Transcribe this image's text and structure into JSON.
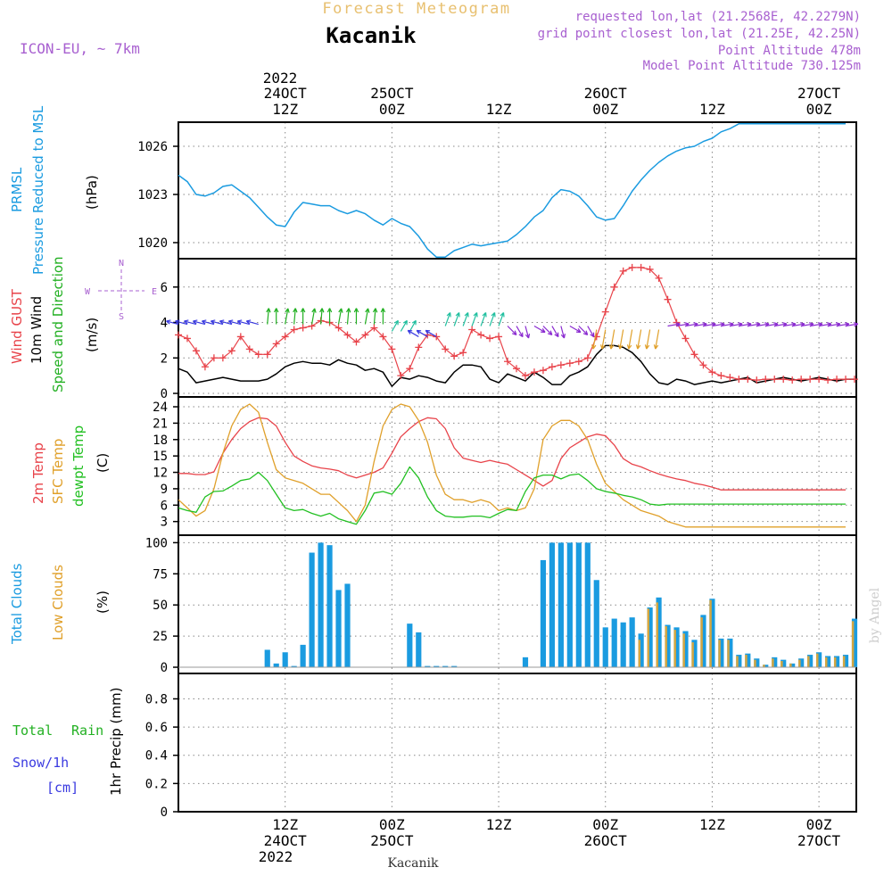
{
  "header": {
    "title_top": "Forecast Meteogram",
    "station": "Kacanik",
    "model": "ICON-EU, ~ 7km",
    "requested": "requested lon,lat (21.2568E, 42.2279N)",
    "gridpoint": "grid point closest lon,lat (21.25E, 42.25N)",
    "altitude": "Point Altitude 478m",
    "model_altitude": "Model Point Altitude 730.125m",
    "footer_station": "Kacanik",
    "credit": "by Angel",
    "year_top": "2022",
    "year_bottom": "2022"
  },
  "colors": {
    "pressure": "#1a9be0",
    "gust": "#e8434a",
    "wind": "#000000",
    "dir": "#22b022",
    "temp2m": "#e8434a",
    "sfc": "#e0a02a",
    "dew": "#22c022",
    "total": "#1a9be0",
    "low": "#d4a640",
    "precip_rain": "#22b022",
    "precip_snow": "#3a3ae0",
    "purple": "#a860d0",
    "title_orange": "#e8c070"
  },
  "time_axis": {
    "top_labels": [
      {
        "h": 12,
        "l1": "24OCT",
        "l2": "12Z"
      },
      {
        "h": 24,
        "l1": "25OCT",
        "l2": "00Z"
      },
      {
        "h": 36,
        "l1": "",
        "l2": "12Z"
      },
      {
        "h": 48,
        "l1": "26OCT",
        "l2": "00Z"
      },
      {
        "h": 60,
        "l1": "",
        "l2": "12Z"
      },
      {
        "h": 72,
        "l1": "27OCT",
        "l2": "00Z"
      }
    ],
    "bottom_labels": [
      {
        "h": 12,
        "l1": "12Z",
        "l2": "24OCT"
      },
      {
        "h": 24,
        "l1": "00Z",
        "l2": "25OCT"
      },
      {
        "h": 36,
        "l1": "12Z",
        "l2": ""
      },
      {
        "h": 48,
        "l1": "00Z",
        "l2": "26OCT"
      },
      {
        "h": 60,
        "l1": "12Z",
        "l2": ""
      },
      {
        "h": 72,
        "l1": "00Z",
        "l2": "27OCT"
      }
    ]
  },
  "panel_labels": {
    "pressure": {
      "name1": "PRMSL",
      "name2": "Pressure Reduced to MSL",
      "unit": "(hPa)"
    },
    "wind": {
      "gust": "Wind GUST",
      "wind10": "10m Wind",
      "dir": "Speed and Direction",
      "unit": "(m/s)",
      "compass": {
        "n": "N",
        "w": "W",
        "e": "E",
        "s": "S"
      }
    },
    "temp": {
      "t2m": "2m Temp",
      "sfc": "SFC Temp",
      "dew": "dewpt Temp",
      "unit": "(C)"
    },
    "cloud": {
      "total": "Total Clouds",
      "low": "Low Clouds",
      "unit": "(%)"
    },
    "precip": {
      "rain_a": "Total",
      "rain_b": "Rain",
      "snow": "Snow/1h",
      "snow_unit": "[cm]",
      "unit": "1hr Precip (mm)"
    }
  },
  "chart_data": [
    {
      "type": "line",
      "name": "PRMSL",
      "ylabel": "(hPa)",
      "yticks": [
        1020,
        1023,
        1026
      ],
      "ylim": [
        1019,
        1027.5
      ],
      "x_hours": [
        0,
        1,
        2,
        3,
        4,
        5,
        6,
        7,
        8,
        9,
        10,
        11,
        12,
        13,
        14,
        15,
        16,
        17,
        18,
        19,
        20,
        21,
        22,
        23,
        24,
        25,
        26,
        27,
        28,
        29,
        30,
        31,
        32,
        33,
        34,
        35,
        36,
        37,
        38,
        39,
        40,
        41,
        42,
        43,
        44,
        45,
        46,
        47,
        48,
        49,
        50,
        51,
        52,
        53,
        54,
        55,
        56,
        57,
        58,
        59,
        60,
        61,
        62,
        63,
        64,
        65,
        66,
        67,
        68,
        69,
        70,
        71,
        72,
        73,
        74,
        75,
        76
      ],
      "values": [
        1024.2,
        1023.8,
        1023.0,
        1022.9,
        1023.1,
        1023.5,
        1023.6,
        1023.2,
        1022.8,
        1022.2,
        1021.6,
        1021.1,
        1021.0,
        1021.9,
        1022.5,
        1022.4,
        1022.3,
        1022.3,
        1022.0,
        1021.8,
        1022.0,
        1021.8,
        1021.4,
        1021.1,
        1021.5,
        1021.2,
        1021.0,
        1020.4,
        1019.6,
        1019.1,
        1019.1,
        1019.5,
        1019.7,
        1019.9,
        1019.8,
        1019.9,
        1020.0,
        1020.1,
        1020.5,
        1021.0,
        1021.6,
        1022.0,
        1022.8,
        1023.3,
        1023.2,
        1022.9,
        1022.3,
        1021.6,
        1021.4,
        1021.5,
        1022.3,
        1023.2,
        1023.9,
        1024.5,
        1025.0,
        1025.4,
        1025.7,
        1025.9,
        1026.0,
        1026.3,
        1026.5,
        1026.9,
        1027.1,
        1027.4,
        1027.4,
        1027.4,
        1027.4,
        1027.4,
        1027.4,
        1027.4,
        1027.4,
        1027.4,
        1027.4,
        1027.4,
        1027.4,
        1027.4,
        1027.4
      ]
    },
    {
      "type": "line",
      "name": "Wind",
      "ylabel": "(m/s)",
      "yticks": [
        0,
        2,
        4,
        6
      ],
      "ylim": [
        -0.2,
        7.6
      ],
      "gust_x": [
        0,
        1,
        2,
        3,
        4,
        5,
        6,
        7,
        8,
        9,
        10,
        11,
        12,
        13,
        14,
        15,
        16,
        17,
        18,
        19,
        20,
        21,
        22,
        23,
        24,
        25,
        26,
        27,
        28,
        29,
        30,
        31,
        32,
        33,
        34,
        35,
        36,
        37,
        38,
        39,
        40,
        41,
        42,
        43,
        44,
        45,
        46,
        47,
        48,
        49,
        50,
        51,
        52,
        53,
        54,
        55,
        56,
        57,
        58,
        59,
        60,
        61,
        62,
        63,
        64,
        65,
        66,
        67,
        68,
        69,
        70,
        71,
        72,
        73,
        74,
        75,
        76
      ],
      "gust": [
        3.3,
        3.1,
        2.4,
        1.5,
        2.0,
        2.0,
        2.4,
        3.2,
        2.5,
        2.2,
        2.2,
        2.8,
        3.2,
        3.6,
        3.7,
        3.8,
        4.1,
        4.0,
        3.7,
        3.3,
        2.9,
        3.3,
        3.7,
        3.2,
        2.5,
        1.0,
        1.4,
        2.6,
        3.3,
        3.2,
        2.5,
        2.1,
        2.3,
        3.6,
        3.3,
        3.1,
        3.2,
        1.8,
        1.4,
        1.0,
        1.2,
        1.3,
        1.5,
        1.6,
        1.7,
        1.8,
        2.0,
        3.2,
        4.6,
        6.0,
        6.9,
        7.1,
        7.1,
        7.0,
        6.5,
        5.3,
        4.0,
        3.1,
        2.2,
        1.6,
        1.2,
        1.0,
        0.9,
        0.8,
        0.8,
        0.75,
        0.8,
        0.8,
        0.8,
        0.75,
        0.8,
        0.8,
        0.8,
        0.75,
        0.8,
        0.8,
        0.8
      ],
      "wind_x": [
        0,
        1,
        2,
        3,
        4,
        5,
        6,
        7,
        8,
        9,
        10,
        11,
        12,
        13,
        14,
        15,
        16,
        17,
        18,
        19,
        20,
        21,
        22,
        23,
        24,
        25,
        26,
        27,
        28,
        29,
        30,
        31,
        32,
        33,
        34,
        35,
        36,
        37,
        38,
        39,
        40,
        41,
        42,
        43,
        44,
        45,
        46,
        47,
        48,
        49,
        50,
        51,
        52,
        53,
        54,
        55,
        56,
        57,
        58,
        59,
        60,
        61,
        62,
        63,
        64,
        65,
        66,
        67,
        68,
        69,
        70,
        71,
        72,
        73,
        74,
        75,
        76
      ],
      "wind": [
        1.4,
        1.2,
        0.6,
        0.7,
        0.8,
        0.9,
        0.8,
        0.7,
        0.7,
        0.7,
        0.8,
        1.1,
        1.5,
        1.7,
        1.8,
        1.7,
        1.7,
        1.6,
        1.9,
        1.7,
        1.6,
        1.3,
        1.4,
        1.2,
        0.4,
        0.9,
        0.8,
        1.0,
        0.9,
        0.7,
        0.6,
        1.2,
        1.6,
        1.6,
        1.5,
        0.8,
        0.6,
        1.1,
        0.9,
        0.7,
        1.2,
        0.9,
        0.5,
        0.5,
        1.0,
        1.2,
        1.5,
        2.2,
        2.7,
        2.7,
        2.6,
        2.3,
        1.8,
        1.1,
        0.6,
        0.5,
        0.8,
        0.7,
        0.5,
        0.6,
        0.7,
        0.6,
        0.7,
        0.8,
        0.9,
        0.6,
        0.7,
        0.8,
        0.9,
        0.8,
        0.7,
        0.8,
        0.9,
        0.8,
        0.7,
        0.8,
        0.8
      ]
    },
    {
      "type": "line",
      "name": "Temperature",
      "ylabel": "(C)",
      "yticks": [
        3,
        6,
        9,
        12,
        15,
        18,
        21,
        24
      ],
      "ylim": [
        0.5,
        25.8
      ],
      "x": [
        0,
        1,
        2,
        3,
        4,
        5,
        6,
        7,
        8,
        9,
        10,
        11,
        12,
        13,
        14,
        15,
        16,
        17,
        18,
        19,
        20,
        21,
        22,
        23,
        24,
        25,
        26,
        27,
        28,
        29,
        30,
        31,
        32,
        33,
        34,
        35,
        36,
        37,
        38,
        39,
        40,
        41,
        42,
        43,
        44,
        45,
        46,
        47,
        48,
        49,
        50,
        51,
        52,
        53,
        54,
        55,
        56,
        57,
        58,
        59,
        60,
        61,
        62,
        63,
        64,
        65,
        66,
        67,
        68,
        69,
        70,
        71,
        72,
        73,
        74,
        75,
        76
      ],
      "t2m": [
        11.8,
        11.8,
        11.6,
        11.6,
        12.1,
        15.5,
        18.0,
        20.0,
        21.3,
        22.0,
        21.8,
        20.5,
        17.5,
        15.0,
        14.0,
        13.2,
        12.8,
        12.6,
        12.3,
        11.5,
        11.0,
        11.5,
        12.0,
        12.8,
        15.5,
        18.5,
        20.0,
        21.3,
        22.0,
        21.8,
        20.0,
        16.5,
        14.6,
        14.2,
        13.8,
        14.2,
        13.8,
        13.5,
        12.5,
        11.5,
        10.5,
        9.5,
        10.5,
        14.5,
        16.5,
        17.5,
        18.5,
        19.0,
        18.7,
        17.0,
        14.5,
        13.5,
        13.0,
        12.3,
        11.7,
        11.2,
        10.8,
        10.5,
        10.0,
        9.7,
        9.3,
        8.8,
        8.8,
        8.8,
        8.8,
        8.8,
        8.8,
        8.8,
        8.8,
        8.8,
        8.8,
        8.8,
        8.8,
        8.8,
        8.8,
        8.8,
        8.8
      ],
      "sfc": [
        7.0,
        5.5,
        4.0,
        5.0,
        9.0,
        15.5,
        20.5,
        23.5,
        24.5,
        23.0,
        17.5,
        12.5,
        11.0,
        10.5,
        10.0,
        9.0,
        8.0,
        8.0,
        6.5,
        5.0,
        3.0,
        6.0,
        14.0,
        20.5,
        23.5,
        24.5,
        24.0,
        21.5,
        17.5,
        11.5,
        8.0,
        7.0,
        7.0,
        6.5,
        7.0,
        6.5,
        5.0,
        5.5,
        5.0,
        5.5,
        9.0,
        18.0,
        20.5,
        21.5,
        21.5,
        20.5,
        18.0,
        13.5,
        10.0,
        8.5,
        7.0,
        6.0,
        5.0,
        4.5,
        4.0,
        3.0,
        2.5,
        2.0,
        2.0,
        2.0,
        2.0,
        2.0,
        2.0,
        2.0,
        2.0,
        2.0,
        2.0,
        2.0,
        2.0,
        2.0,
        2.0,
        2.0,
        2.0,
        2.0,
        2.0,
        2.0,
        2.0
      ],
      "dew": [
        5.5,
        5.0,
        4.7,
        7.5,
        8.5,
        8.6,
        9.5,
        10.5,
        10.8,
        12.0,
        10.5,
        8.0,
        5.5,
        5.0,
        5.2,
        4.5,
        4.0,
        4.5,
        3.5,
        3.0,
        2.5,
        5.0,
        8.2,
        8.5,
        8.0,
        10.0,
        13.0,
        11.0,
        7.5,
        5.0,
        4.0,
        3.8,
        3.8,
        4.0,
        4.0,
        3.7,
        4.5,
        5.2,
        5.0,
        8.5,
        11.0,
        11.5,
        11.5,
        10.8,
        11.5,
        11.7,
        10.5,
        9.0,
        8.5,
        8.2,
        7.8,
        7.5,
        7.0,
        6.2,
        6.0,
        6.2,
        6.2,
        6.2,
        6.2,
        6.2,
        6.2,
        6.2,
        6.2,
        6.2,
        6.2,
        6.2,
        6.2,
        6.2,
        6.2,
        6.2,
        6.2,
        6.2,
        6.2,
        6.2,
        6.2,
        6.2,
        6.2
      ]
    },
    {
      "type": "bar",
      "name": "Clouds",
      "ylabel": "(%)",
      "yticks": [
        0,
        25,
        50,
        75,
        100
      ],
      "ylim": [
        -5,
        106
      ],
      "x": [
        0,
        1,
        2,
        3,
        4,
        5,
        6,
        7,
        8,
        9,
        10,
        11,
        12,
        13,
        14,
        15,
        16,
        17,
        18,
        19,
        20,
        21,
        22,
        23,
        24,
        25,
        26,
        27,
        28,
        29,
        30,
        31,
        32,
        33,
        34,
        35,
        36,
        37,
        38,
        39,
        40,
        41,
        42,
        43,
        44,
        45,
        46,
        47,
        48,
        49,
        50,
        51,
        52,
        53,
        54,
        55,
        56,
        57,
        58,
        59,
        60,
        61,
        62,
        63,
        64,
        65,
        66,
        67,
        68,
        69,
        70,
        71,
        72,
        73,
        74,
        75,
        76
      ],
      "total": [
        0,
        0,
        0,
        0,
        0,
        0,
        0,
        0,
        0,
        0,
        14,
        3,
        12,
        1,
        18,
        92,
        100,
        98,
        62,
        67,
        0,
        0,
        0,
        0,
        0,
        0,
        35,
        28,
        1,
        1,
        1,
        1,
        0,
        0,
        0,
        0,
        0,
        0,
        0,
        8,
        0,
        86,
        100,
        100,
        100,
        100,
        100,
        70,
        32,
        39,
        36,
        40,
        27,
        48,
        56,
        34,
        32,
        29,
        22,
        42,
        55,
        23,
        23,
        10,
        11,
        7,
        2,
        8,
        6,
        3,
        7,
        10,
        12,
        9,
        9,
        10,
        39
      ],
      "low": [
        0,
        0,
        0,
        0,
        0,
        0,
        0,
        0,
        0,
        0,
        0,
        0,
        0,
        0,
        0,
        0,
        0,
        0,
        0,
        0,
        0,
        0,
        0,
        0,
        0,
        0,
        0,
        0,
        0,
        0,
        0,
        0,
        0,
        0,
        0,
        0,
        0,
        0,
        0,
        0,
        0,
        0,
        0,
        0,
        0,
        0,
        0,
        0,
        0,
        0,
        0,
        0,
        22,
        47,
        52,
        33,
        30,
        27,
        20,
        40,
        54,
        22,
        22,
        9,
        10,
        6,
        2,
        7,
        5,
        3,
        6,
        9,
        11,
        8,
        8,
        9,
        37
      ]
    },
    {
      "type": "bar",
      "name": "Precipitation",
      "ylabel": "1hr Precip (mm)",
      "yticks": [
        0,
        0.2,
        0.4,
        0.6,
        0.8
      ],
      "ylim": [
        0,
        0.98
      ],
      "values": []
    }
  ]
}
